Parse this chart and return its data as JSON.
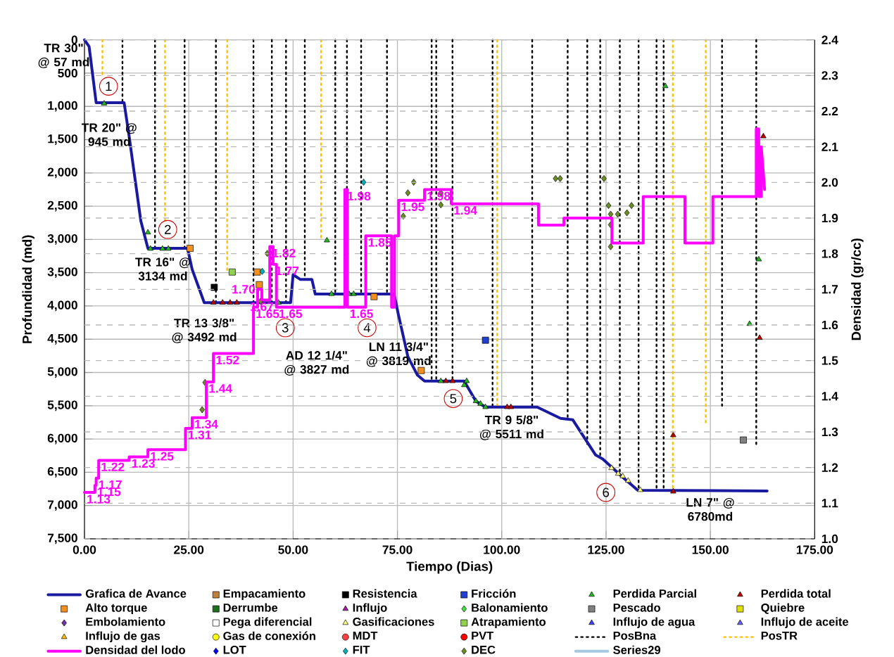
{
  "chart_data": {
    "type": "line",
    "xlabel": "Tiempo (Dias)",
    "ylabel": "Profundidad (md)",
    "y2label": "Densidad (gr/cc)",
    "xlim": [
      0,
      175
    ],
    "xticks": [
      {
        "value": 0,
        "label": "0.00"
      },
      {
        "value": 25,
        "label": "25.00"
      },
      {
        "value": 50,
        "label": "50.00"
      },
      {
        "value": 75,
        "label": "75.00"
      },
      {
        "value": 100,
        "label": "100.00"
      },
      {
        "value": 125,
        "label": "125.00"
      },
      {
        "value": 150,
        "label": "150.00"
      },
      {
        "value": 175,
        "label": "175.00"
      }
    ],
    "ylim": [
      7500,
      0
    ],
    "yticks": [
      0,
      500,
      {
        "value": 1000,
        "label": "1,000"
      },
      {
        "value": 1500,
        "label": "1,500"
      },
      {
        "value": 2000,
        "label": "2,000"
      },
      {
        "value": 2500,
        "label": "2,500"
      },
      {
        "value": 3000,
        "label": "3,000"
      },
      {
        "value": 3500,
        "label": "3,500"
      },
      {
        "value": 4000,
        "label": "4,000"
      },
      {
        "value": 4500,
        "label": "4,500"
      },
      {
        "value": 5000,
        "label": "5,000"
      },
      {
        "value": 5500,
        "label": "5,500"
      },
      {
        "value": 6000,
        "label": "6,000"
      },
      {
        "value": 6500,
        "label": "6,500"
      },
      {
        "value": 7000,
        "label": "7,000"
      },
      {
        "value": 7500,
        "label": "7,500"
      }
    ],
    "y2lim": [
      1.0,
      2.4
    ],
    "y2ticks": [
      {
        "value": 1.0,
        "label": "1.0"
      },
      1.1,
      1.2,
      1.3,
      1.4,
      1.5,
      1.6,
      1.7,
      1.8,
      1.9,
      {
        "value": 2.0,
        "label": "2.0"
      },
      2.1,
      2.2,
      2.3,
      2.4
    ],
    "grid": true,
    "legend": "bottom",
    "annotations": [
      {
        "text": "TR 30\" @ 57 md",
        "x": 1.1,
        "y": 100
      },
      {
        "text": "TR 20\" @ 945 md",
        "x": 2.8,
        "y": 945
      },
      {
        "text": "TR 16\" @ 3134 md",
        "x": 15.2,
        "y": 3134
      },
      {
        "text": "TR 13 3/8\" @ 3492 md",
        "x": 28.7,
        "y": 3950
      },
      "AD 12 1/4\" @ 3827 md",
      {
        "text": "LN 11 3/4\" @ 3819 md",
        "x": 79.8,
        "y": 5040
      },
      {
        "text": "TR 9 5/8\" @ 5511 md",
        "x": 96.1,
        "y": 5520
      },
      "LN 7\" @ 6780md",
      "1",
      "2",
      "3",
      "4",
      "5",
      "6"
    ],
    "series": [
      {
        "name": "Grafica de Avance",
        "color": "#1a1aa0",
        "marker": "none",
        "line_style": "solid",
        "x": [
          0,
          1.1,
          2.8,
          9.5,
          10.7,
          12.4,
          13.5,
          15.2,
          24.7,
          25.8,
          28.7,
          49.4,
          50,
          51.7,
          54.5,
          55.3,
          74.2,
          75.2,
          77.5,
          79.8,
          81.5,
          91,
          93.8,
          96.1,
          108.5,
          114.1,
          117,
          122.5,
          124.2,
          129.3,
          132.6,
          163.6
        ],
        "values": [
          0,
          100,
          945,
          945,
          1450,
          2220,
          2720,
          3134,
          3134,
          3450,
          3950,
          3950,
          3530,
          3600,
          3600,
          3820,
          3820,
          4120,
          4760,
          5040,
          5130,
          5130,
          5430,
          5520,
          5520,
          5690,
          5710,
          6240,
          6300,
          6590,
          6770,
          6780
        ]
      },
      {
        "name": "Empacamiento",
        "type": "scatter",
        "color": "#c0803c",
        "marker": "square"
      },
      {
        "name": "Resistencia",
        "type": "scatter",
        "color": "#000000",
        "marker": "square",
        "x": [
          31.1
        ],
        "values": [
          3720
        ]
      },
      {
        "name": "Fricción",
        "type": "scatter",
        "color": "#1f3fd0",
        "marker": "square",
        "x": [
          96.1
        ],
        "values": [
          4515
        ]
      },
      {
        "name": "Perdida Parcial",
        "type": "scatter",
        "color": "#22b822",
        "marker": "triangle",
        "x": [
          4.7,
          15.2,
          15.8,
          18.7,
          20.1,
          46.5,
          58.1,
          59.2,
          63.4,
          64.5,
          85.4,
          91,
          91.6,
          93.8,
          94.9,
          96.1,
          139.2,
          159.4,
          161.6
        ],
        "values": [
          957,
          2895,
          3140,
          3140,
          3140,
          3950,
          3015,
          3820,
          3820,
          3820,
          5130,
          5190,
          5130,
          5430,
          5470,
          5520,
          696,
          4270,
          3300
        ]
      },
      {
        "name": "Perdida total",
        "type": "scatter",
        "color": "#c00000",
        "marker": "triangle",
        "x": [
          30.9,
          33.1,
          34.9,
          36.5,
          86.6,
          88.2,
          101.3,
          102.2,
          141.1,
          141.1,
          161.8,
          162.7
        ],
        "values": [
          3950,
          3950,
          3950,
          3950,
          5130,
          5130,
          5520,
          5520,
          5943,
          6790,
          4480,
          1450
        ]
      },
      {
        "name": "Alto torque",
        "type": "scatter",
        "color": "#f0901e",
        "marker": "square",
        "x": [
          25.3,
          41.4,
          41.9,
          69.4,
          80.7
        ],
        "values": [
          3134,
          3490,
          3680,
          3860,
          4970
        ]
      },
      {
        "name": "Derrumbe",
        "type": "scatter",
        "color": "#1e6e1e",
        "marker": "square"
      },
      {
        "name": "Influjo",
        "type": "scatter",
        "color": "#a020a0",
        "marker": "triangle"
      },
      {
        "name": "Balonamiento",
        "type": "scatter",
        "color": "#40e040",
        "marker": "diamond"
      },
      {
        "name": "Pescado",
        "type": "scatter",
        "color": "#808080",
        "marker": "square",
        "x": [
          157.9
        ],
        "values": [
          6015
        ]
      },
      {
        "name": "Quiebre",
        "type": "scatter",
        "color": "#e0e000",
        "marker": "square"
      },
      {
        "name": "Embolamiento",
        "type": "scatter",
        "color": "#7030a0",
        "marker": "diamond"
      },
      {
        "name": "Pega diferencial",
        "type": "scatter",
        "color": "#ffffff",
        "marker": "square"
      },
      {
        "name": "Gasificaciones",
        "type": "scatter",
        "color": "#ffff80",
        "marker": "triangle",
        "x": [
          126.3,
          127.9,
          129,
          130.3,
          133.2
        ],
        "values": [
          6437,
          6522,
          6560,
          6628,
          6767
        ]
      },
      {
        "name": "Atrapamiento",
        "type": "scatter",
        "color": "#92d050",
        "marker": "square",
        "x": [
          35.4
        ],
        "values": [
          3490
        ]
      },
      {
        "name": "Influjo de agua",
        "type": "scatter",
        "color": "#4040ff",
        "marker": "triangle"
      },
      {
        "name": "Influjo de aceite",
        "type": "scatter",
        "color": "#6060ff",
        "marker": "triangle"
      },
      {
        "name": "Influjo de gas",
        "type": "scatter",
        "color": "#ffc000",
        "marker": "triangle"
      },
      {
        "name": "Gas de conexión",
        "type": "scatter",
        "color": "#ffff00",
        "marker": "circle"
      },
      {
        "name": "MDT",
        "type": "scatter",
        "color": "#ff4040",
        "marker": "circle"
      },
      {
        "name": "PVT",
        "type": "scatter",
        "color": "#ff0000",
        "marker": "circle"
      },
      {
        "name": "PosBna",
        "color": "#000000",
        "marker": "none",
        "line_style": "dotted",
        "x": [
          9.1,
          9.1,
          null,
          16.9,
          16.9,
          null,
          24,
          24,
          null,
          31.5,
          31.5,
          null,
          40.5,
          40.5,
          null,
          44.9,
          44.9,
          null,
          48.3,
          48.3,
          null,
          52.8,
          52.8,
          null,
          60.1,
          60.1,
          null,
          62.9,
          62.9,
          null,
          66.3,
          66.3,
          null,
          72.5,
          72.5,
          null,
          83.2,
          83.2,
          null,
          84.3,
          84.3,
          null,
          88.2,
          88.2,
          null,
          97.8,
          97.8,
          null,
          107.3,
          107.3,
          null,
          115.8,
          115.8,
          null,
          120.5,
          120.5,
          null,
          123.6,
          123.6,
          null,
          128.3,
          128.3,
          null,
          132.8,
          132.8,
          null,
          137.1,
          137.1,
          null,
          138.8,
          138.8,
          null,
          152.8,
          152.8,
          null,
          161,
          161
        ],
        "values": [
          0,
          945,
          null,
          0,
          3134,
          null,
          0,
          3134,
          null,
          0,
          3950,
          null,
          0,
          3950,
          null,
          0,
          3950,
          null,
          0,
          3950,
          null,
          0,
          3600,
          null,
          0,
          3820,
          null,
          0,
          3820,
          null,
          0,
          3820,
          null,
          0,
          3820,
          null,
          0,
          5130,
          null,
          0,
          5130,
          null,
          0,
          5130,
          null,
          0,
          5520,
          null,
          0,
          5520,
          null,
          0,
          5700,
          null,
          0,
          6100,
          null,
          0,
          6250,
          null,
          0,
          6550,
          null,
          0,
          6780,
          null,
          0,
          6780,
          null,
          0,
          6780,
          null,
          0,
          5500,
          null,
          0,
          6100
        ]
      },
      {
        "name": "PosTR",
        "color": "#ffc000",
        "marker": "none",
        "line_style": "dotted",
        "x": [
          4.3,
          4.3,
          null,
          19.3,
          19.3,
          null,
          34.2,
          34.2,
          null,
          56.7,
          56.7,
          null,
          98.9,
          98.9,
          null,
          141,
          141,
          null,
          148.9,
          148.9
        ],
        "values": [
          0,
          530,
          null,
          0,
          2720,
          null,
          0,
          3490,
          null,
          0,
          3000,
          null,
          0,
          5520,
          null,
          0,
          6780,
          null,
          0,
          5750
        ]
      },
      {
        "name": "Densidad del lodo",
        "axis": "y2",
        "color": "#ff00ff",
        "marker": "none",
        "line_style": "solid",
        "x": [
          0,
          2.5,
          2.5,
          2.8,
          2.8,
          3.4,
          3.4,
          10.7,
          10.7,
          15.2,
          15.2,
          24.2,
          24.2,
          25.8,
          25.8,
          29.2,
          29.2,
          30.9,
          30.9,
          40.5,
          40.5,
          41.5,
          41.5,
          42.5,
          42.5,
          44.4,
          44.4,
          45.2,
          45.2,
          46.0,
          46.0,
          62.4,
          62.4,
          63.0,
          63.0,
          67.4,
          67.4,
          73.6,
          73.6,
          74.3,
          74.3,
          75.3,
          75.3,
          81.5,
          81.5,
          87.9,
          87.9,
          108.8,
          108.8,
          114.9,
          114.9,
          126.4,
          126.4,
          133.9,
          133.9,
          143.9,
          143.9,
          150.6,
          150.6,
          161.0,
          161.0,
          161.6,
          161.6,
          162.2,
          162.2,
          163.0
        ],
        "values": [
          1.13,
          1.13,
          1.15,
          1.15,
          1.17,
          1.17,
          1.22,
          1.22,
          1.23,
          1.23,
          1.25,
          1.25,
          1.31,
          1.31,
          1.34,
          1.34,
          1.44,
          1.44,
          1.52,
          1.52,
          1.65,
          1.65,
          1.7,
          1.7,
          1.67,
          1.67,
          1.82,
          1.82,
          1.77,
          1.77,
          1.65,
          1.65,
          1.98,
          1.98,
          1.65,
          1.65,
          1.85,
          1.85,
          1.65,
          1.65,
          1.85,
          1.85,
          1.95,
          1.95,
          1.98,
          1.98,
          1.94,
          1.94,
          1.88,
          1.88,
          1.9,
          1.9,
          1.83,
          1.83,
          1.96,
          1.96,
          1.83,
          1.83,
          1.96,
          1.96,
          2.15,
          2.15,
          1.96,
          1.96,
          2.1,
          1.98
        ],
        "value_labels": [
          "1.13",
          null,
          "1.15",
          null,
          "1.17",
          null,
          "1.22",
          null,
          "1.23",
          null,
          "1.25",
          null,
          "1.31",
          null,
          "1.34",
          null,
          "1.44",
          null,
          "1.52",
          null,
          "1.65",
          null,
          "1.70",
          null,
          "1.67",
          null,
          "1.82",
          null,
          "1.77",
          null,
          "1.65",
          null,
          "1.98",
          null,
          "1.65",
          null,
          "1.85",
          null,
          null,
          null,
          null,
          null,
          "1.95",
          null,
          "1.98",
          null,
          "1.94",
          null,
          null,
          null,
          null,
          null,
          null,
          null,
          null,
          null,
          null,
          null,
          null,
          null,
          null,
          null,
          null,
          null,
          null,
          null
        ]
      },
      {
        "name": "LOT",
        "type": "scatter",
        "color": "#0000ff",
        "marker": "diamond"
      },
      {
        "name": "FIT",
        "type": "scatter",
        "color": "#00b0c0",
        "marker": "diamond",
        "x": [
          66.9,
          42.6
        ],
        "values": [
          2140,
          3480
        ]
      },
      {
        "name": "DEC",
        "type": "scatter",
        "color": "#6b8e23",
        "marker": "diamond",
        "x": [
          28.9,
          28.2,
          43.8,
          42.2,
          76.4,
          77.5,
          78.9,
          85.4,
          85.4,
          112.9,
          114,
          124.5,
          125.6,
          126.1,
          127.8,
          130,
          131.1,
          126.1,
          126.1
        ],
        "values": [
          5150,
          5560,
          3210,
          3930,
          2650,
          2300,
          2140,
          2300,
          2480,
          2085,
          2085,
          2085,
          2490,
          2620,
          2620,
          2600,
          2490,
          2780,
          3110
        ]
      },
      {
        "name": "Series29",
        "color": "#a6c8e0",
        "marker": "none",
        "line_style": "solid"
      }
    ]
  }
}
